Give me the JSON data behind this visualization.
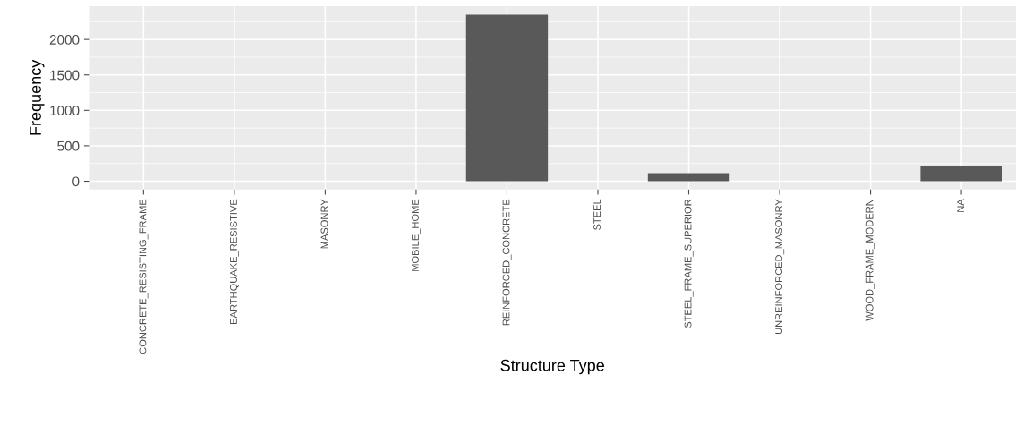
{
  "chart_data": {
    "type": "bar",
    "xlabel": "Structure Type",
    "ylabel": "Frequency",
    "categories": [
      "CONCRETE_RESISTING_FRAME",
      "EARTHQUAKE_RESISTIVE",
      "MASONRY",
      "MOBILE_HOME",
      "REINFORCED_CONCRETE",
      "STEEL",
      "STEEL_FRAME_SUPERIOR",
      "UNREINFORCED_MASONRY",
      "WOOD_FRAME_MODERN",
      "NA"
    ],
    "values": [
      0,
      0,
      0,
      0,
      2350,
      0,
      113,
      0,
      0,
      220
    ],
    "color": "#595959",
    "ylim": [
      -118,
      2470
    ],
    "yticks": [
      0,
      500,
      1000,
      1500,
      2000
    ],
    "grid": true
  }
}
